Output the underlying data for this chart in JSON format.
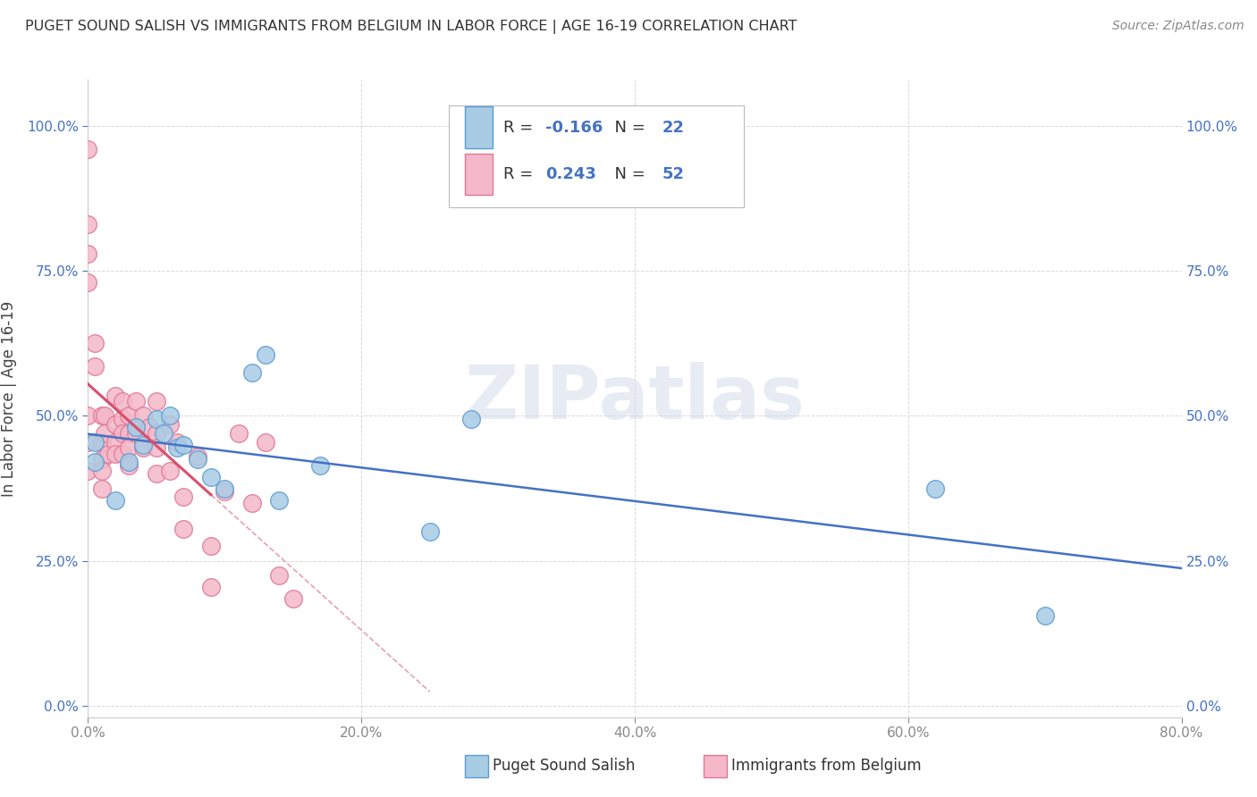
{
  "title": "PUGET SOUND SALISH VS IMMIGRANTS FROM BELGIUM IN LABOR FORCE | AGE 16-19 CORRELATION CHART",
  "source": "Source: ZipAtlas.com",
  "ylabel": "In Labor Force | Age 16-19",
  "xlim": [
    0.0,
    0.8
  ],
  "ylim": [
    -0.02,
    1.08
  ],
  "yticks": [
    0.0,
    0.25,
    0.5,
    0.75,
    1.0
  ],
  "yticklabels": [
    "0.0%",
    "25.0%",
    "50.0%",
    "75.0%",
    "100.0%"
  ],
  "xticks": [
    0.0,
    0.2,
    0.4,
    0.6,
    0.8
  ],
  "xticklabels": [
    "0.0%",
    "20.0%",
    "40.0%",
    "60.0%",
    "80.0%"
  ],
  "blue_R": "-0.166",
  "blue_N": "22",
  "pink_R": "0.243",
  "pink_N": "52",
  "blue_color": "#a8cce4",
  "pink_color": "#f4b8c8",
  "blue_edge_color": "#5b9bd5",
  "pink_edge_color": "#e07898",
  "blue_line_color": "#4472c4",
  "pink_line_color": "#d94f6e",
  "pink_dash_color": "#e8a0b0",
  "legend_label_blue": "Puget Sound Salish",
  "legend_label_pink": "Immigrants from Belgium",
  "watermark": "ZIPatlas",
  "blue_scatter_x": [
    0.005,
    0.005,
    0.02,
    0.03,
    0.035,
    0.04,
    0.05,
    0.055,
    0.06,
    0.065,
    0.07,
    0.08,
    0.09,
    0.1,
    0.12,
    0.13,
    0.14,
    0.17,
    0.25,
    0.28,
    0.62,
    0.7
  ],
  "blue_scatter_y": [
    0.455,
    0.42,
    0.355,
    0.42,
    0.48,
    0.45,
    0.495,
    0.47,
    0.5,
    0.445,
    0.45,
    0.425,
    0.395,
    0.375,
    0.575,
    0.605,
    0.355,
    0.415,
    0.3,
    0.495,
    0.375,
    0.155
  ],
  "pink_scatter_x": [
    0.0,
    0.0,
    0.0,
    0.0,
    0.0,
    0.0,
    0.0,
    0.005,
    0.005,
    0.01,
    0.01,
    0.01,
    0.01,
    0.01,
    0.012,
    0.012,
    0.015,
    0.02,
    0.02,
    0.02,
    0.02,
    0.025,
    0.025,
    0.025,
    0.025,
    0.03,
    0.03,
    0.03,
    0.03,
    0.035,
    0.035,
    0.04,
    0.04,
    0.045,
    0.05,
    0.05,
    0.05,
    0.05,
    0.06,
    0.06,
    0.065,
    0.07,
    0.07,
    0.08,
    0.09,
    0.09,
    0.1,
    0.11,
    0.12,
    0.13,
    0.14,
    0.15
  ],
  "pink_scatter_y": [
    0.96,
    0.83,
    0.78,
    0.73,
    0.5,
    0.455,
    0.405,
    0.585,
    0.625,
    0.5,
    0.455,
    0.425,
    0.405,
    0.375,
    0.5,
    0.47,
    0.435,
    0.535,
    0.485,
    0.455,
    0.435,
    0.525,
    0.495,
    0.47,
    0.435,
    0.5,
    0.47,
    0.445,
    0.415,
    0.525,
    0.47,
    0.5,
    0.445,
    0.48,
    0.525,
    0.47,
    0.445,
    0.4,
    0.485,
    0.405,
    0.455,
    0.36,
    0.305,
    0.43,
    0.275,
    0.205,
    0.37,
    0.47,
    0.35,
    0.455,
    0.225,
    0.185
  ],
  "background_color": "#ffffff",
  "grid_color": "#d0d0d0",
  "tick_color": "#888888",
  "right_tick_color": "#4472c4"
}
